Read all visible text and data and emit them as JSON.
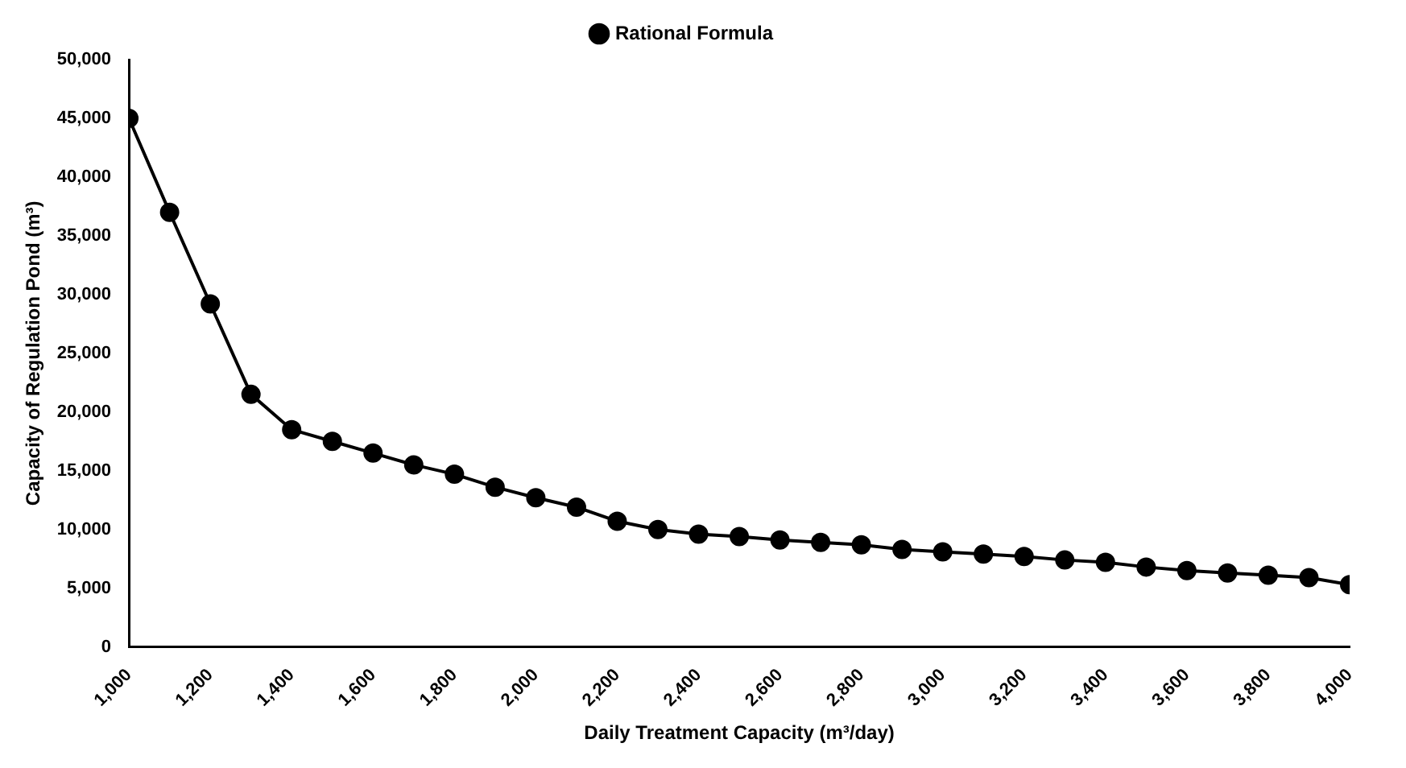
{
  "chart_data": {
    "type": "line",
    "xlabel": "Daily Treatment Capacity (m³/day)",
    "ylabel": "Capacity of Regulation Pond (m³)",
    "x": [
      1000,
      1100,
      1200,
      1300,
      1400,
      1500,
      1600,
      1700,
      1800,
      1900,
      2000,
      2100,
      2200,
      2300,
      2400,
      2500,
      2600,
      2700,
      2800,
      2900,
      3000,
      3100,
      3200,
      3300,
      3400,
      3500,
      3600,
      3700,
      3800,
      3900,
      4000
    ],
    "series": [
      {
        "name": "Rational Formula",
        "color": "#000000",
        "values": [
          45000,
          37000,
          29200,
          21500,
          18500,
          17500,
          16500,
          15500,
          14700,
          13600,
          12700,
          11900,
          10700,
          10000,
          9600,
          9400,
          9100,
          8900,
          8700,
          8300,
          8100,
          7900,
          7700,
          7400,
          7200,
          6800,
          6500,
          6300,
          6100,
          5900,
          5300
        ]
      }
    ],
    "xlim": [
      1000,
      4000
    ],
    "xticks": [
      {
        "value": 1000,
        "label": "1,000"
      },
      {
        "value": 1200,
        "label": "1,200"
      },
      {
        "value": 1400,
        "label": "1,400"
      },
      {
        "value": 1600,
        "label": "1,600"
      },
      {
        "value": 1800,
        "label": "1,800"
      },
      {
        "value": 2000,
        "label": "2,000"
      },
      {
        "value": 2200,
        "label": "2,200"
      },
      {
        "value": 2400,
        "label": "2,400"
      },
      {
        "value": 2600,
        "label": "2,600"
      },
      {
        "value": 2800,
        "label": "2,800"
      },
      {
        "value": 3000,
        "label": "3,000"
      },
      {
        "value": 3200,
        "label": "3,200"
      },
      {
        "value": 3400,
        "label": "3,400"
      },
      {
        "value": 3600,
        "label": "3,600"
      },
      {
        "value": 3800,
        "label": "3,800"
      },
      {
        "value": 4000,
        "label": "4,000"
      }
    ],
    "ylim": [
      0,
      50000
    ],
    "yticks": [
      0,
      {
        "value": 5000,
        "label": "5,000"
      },
      {
        "value": 10000,
        "label": "10,000"
      },
      {
        "value": 15000,
        "label": "15,000"
      },
      {
        "value": 20000,
        "label": "20,000"
      },
      {
        "value": 25000,
        "label": "25,000"
      },
      {
        "value": 30000,
        "label": "30,000"
      },
      {
        "value": 35000,
        "label": "35,000"
      },
      {
        "value": 40000,
        "label": "40,000"
      },
      {
        "value": 45000,
        "label": "45,000"
      },
      {
        "value": 50000,
        "label": "50,000"
      }
    ],
    "grid": false,
    "legend": "top",
    "marker": "circle",
    "line_style": "solid"
  }
}
